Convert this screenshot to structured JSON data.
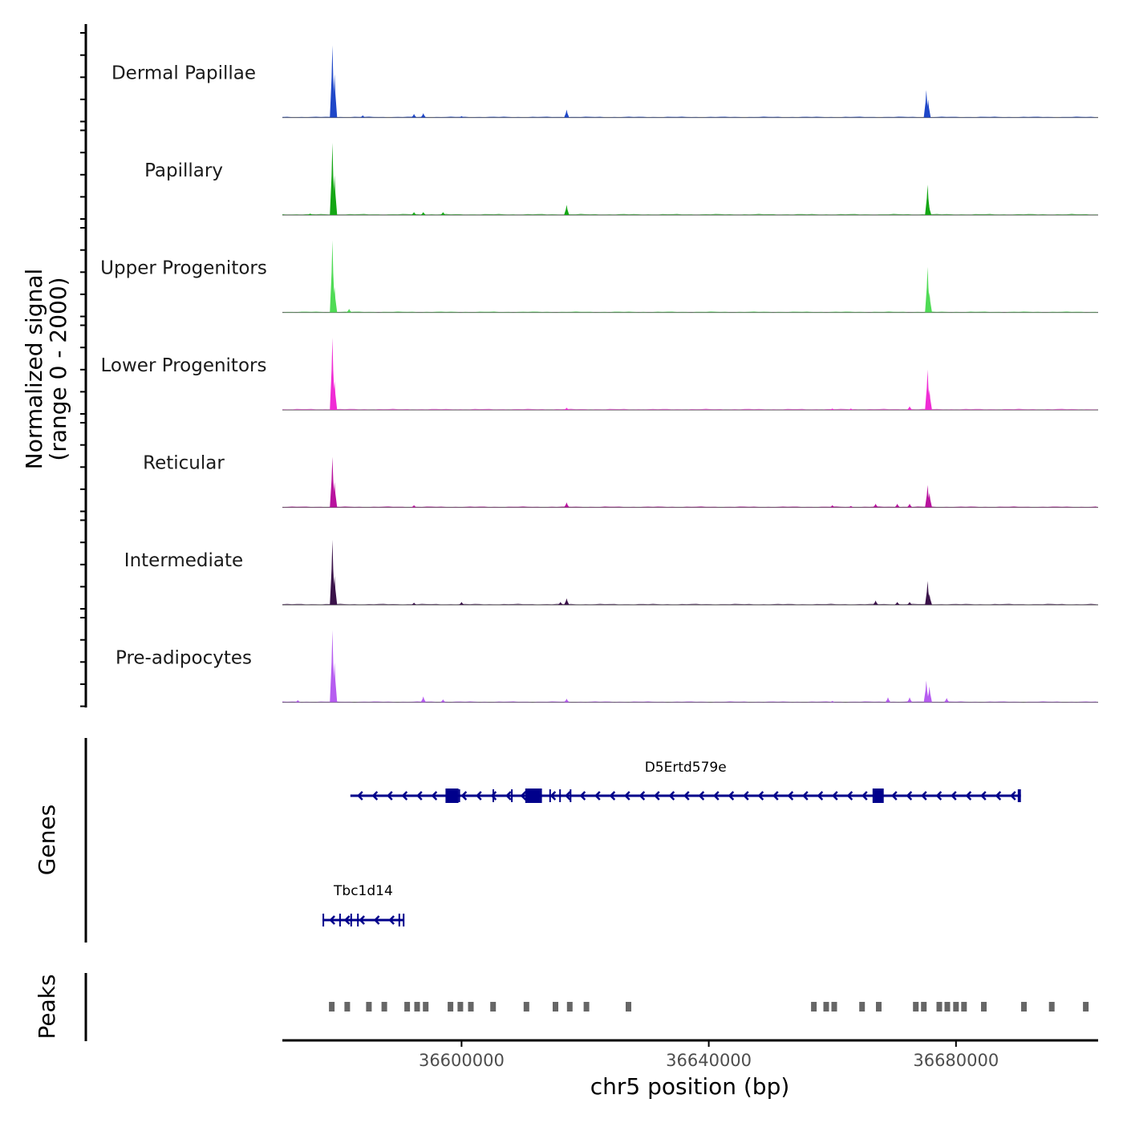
{
  "chart_data": {
    "type": "coverage",
    "region": {
      "chromosome": "chr5",
      "start": 36571000,
      "end": 36703000
    },
    "xlabel": "chr5 position (bp)",
    "x_ticks": [
      36600000,
      36640000,
      36680000
    ],
    "x_tick_labels": [
      "36600000",
      "36640000",
      "36680000"
    ],
    "coverage_ylabel_line1": "Normalized signal",
    "coverage_ylabel_line2": "(range 0 - 2000)",
    "y_range": [
      0,
      2000
    ],
    "tracks": [
      {
        "name": "Dermal Papillae",
        "color": "#1f47c8",
        "peaks": [
          [
            36579100,
            1.0
          ],
          [
            36579450,
            0.6
          ],
          [
            36675200,
            0.38
          ],
          [
            36675500,
            0.25
          ],
          [
            36617000,
            0.11
          ],
          [
            36592300,
            0.05
          ],
          [
            36593800,
            0.06
          ],
          [
            36584000,
            0.03
          ],
          [
            36600000,
            0.02
          ]
        ]
      },
      {
        "name": "Papillary",
        "color": "#14a614",
        "peaks": [
          [
            36579100,
            1.0
          ],
          [
            36579450,
            0.55
          ],
          [
            36675400,
            0.42
          ],
          [
            36675600,
            0.15
          ],
          [
            36617000,
            0.14
          ],
          [
            36592300,
            0.04
          ],
          [
            36593800,
            0.04
          ],
          [
            36597000,
            0.04
          ],
          [
            36575500,
            0.02
          ]
        ]
      },
      {
        "name": "Upper Progenitors",
        "color": "#4fdb55",
        "peaks": [
          [
            36579100,
            1.0
          ],
          [
            36579450,
            0.35
          ],
          [
            36675400,
            0.63
          ],
          [
            36675700,
            0.28
          ],
          [
            36581800,
            0.05
          ]
        ]
      },
      {
        "name": "Lower Progenitors",
        "color": "#f02cd5",
        "peaks": [
          [
            36579100,
            1.0
          ],
          [
            36579450,
            0.4
          ],
          [
            36675400,
            0.56
          ],
          [
            36675700,
            0.28
          ],
          [
            36672500,
            0.05
          ],
          [
            36617000,
            0.03
          ],
          [
            36660000,
            0.02
          ],
          [
            36663000,
            0.02
          ]
        ]
      },
      {
        "name": "Reticular",
        "color": "#b8129e",
        "peaks": [
          [
            36579100,
            0.7
          ],
          [
            36579450,
            0.35
          ],
          [
            36675400,
            0.31
          ],
          [
            36675700,
            0.2
          ],
          [
            36672500,
            0.05
          ],
          [
            36617000,
            0.07
          ],
          [
            36667000,
            0.05
          ],
          [
            36670500,
            0.05
          ],
          [
            36660000,
            0.03
          ],
          [
            36592300,
            0.03
          ],
          [
            36663000,
            0.02
          ]
        ]
      },
      {
        "name": "Intermediate",
        "color": "#3a1249",
        "peaks": [
          [
            36579100,
            0.9
          ],
          [
            36579450,
            0.4
          ],
          [
            36675400,
            0.33
          ],
          [
            36675700,
            0.15
          ],
          [
            36672500,
            0.04
          ],
          [
            36617000,
            0.09
          ],
          [
            36616000,
            0.04
          ],
          [
            36667000,
            0.06
          ],
          [
            36670500,
            0.04
          ],
          [
            36600000,
            0.04
          ],
          [
            36592300,
            0.03
          ]
        ]
      },
      {
        "name": "Pre-adipocytes",
        "color": "#b65cf0",
        "peaks": [
          [
            36579100,
            1.0
          ],
          [
            36579450,
            0.55
          ],
          [
            36675200,
            0.3
          ],
          [
            36675700,
            0.22
          ],
          [
            36672500,
            0.07
          ],
          [
            36678500,
            0.06
          ],
          [
            36593800,
            0.08
          ],
          [
            36597000,
            0.04
          ],
          [
            36617000,
            0.05
          ],
          [
            36669000,
            0.07
          ],
          [
            36573500,
            0.03
          ],
          [
            36660000,
            0.02
          ]
        ]
      }
    ],
    "genes_ylabel": "Genes",
    "genes": [
      {
        "name": "D5Ertd579e",
        "start": 36582000,
        "end": 36690500,
        "strand": "-",
        "exons": [
          [
            36597400,
            36599500
          ],
          [
            36610300,
            36613000
          ],
          [
            36666500,
            36668300
          ],
          [
            36599500,
            36599700
          ],
          [
            36605000,
            36605200
          ],
          [
            36608000,
            36608200
          ],
          [
            36614200,
            36614400
          ],
          [
            36615800,
            36616000
          ],
          [
            36617500,
            36617700
          ],
          [
            36690000,
            36690500
          ]
        ]
      },
      {
        "name": "Tbc1d14",
        "start": 36577500,
        "end": 36590700,
        "strand": "-",
        "exons": [
          [
            36577500,
            36577700
          ],
          [
            36580200,
            36580400
          ],
          [
            36582000,
            36582200
          ],
          [
            36583100,
            36583300
          ],
          [
            36589800,
            36590000
          ],
          [
            36590500,
            36590700
          ]
        ]
      }
    ],
    "peaks_ylabel": "Peaks",
    "peak_regions": [
      36579000,
      36581500,
      36585000,
      36587500,
      36591200,
      36592800,
      36594200,
      36598200,
      36599800,
      36601500,
      36605100,
      36610500,
      36615200,
      36617500,
      36620200,
      36627000,
      36657000,
      36659000,
      36660300,
      36664800,
      36667500,
      36673500,
      36674800,
      36677300,
      36678600,
      36680000,
      36681300,
      36684500,
      36691000,
      36695500,
      36701000
    ]
  }
}
